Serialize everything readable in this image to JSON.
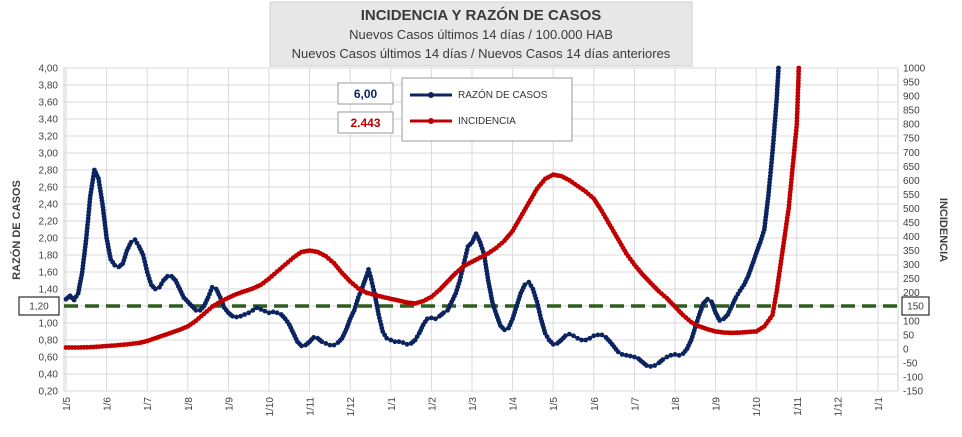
{
  "chart_data": {
    "type": "line",
    "title": "INCIDENCIA Y RAZÓN DE CASOS",
    "subtitle_1": "Nuevos Casos últimos 14 días / 100.000 HAB",
    "subtitle_2": "Nuevos Casos últimos 14 días / Nuevos Casos 14 días anteriores",
    "ylabel_left": "RAZÓN DE CASOS",
    "ylabel_right": "INCIDENCIA",
    "ylim_left": [
      0.2,
      4.0
    ],
    "ylim_right": [
      -150,
      1000
    ],
    "yticks_left": [
      "4,00",
      "3,80",
      "3,60",
      "3,40",
      "3,20",
      "3,00",
      "2,80",
      "2,60",
      "2,40",
      "2,20",
      "2,00",
      "1,80",
      "1,60",
      "1,40",
      "1,20",
      "1,00",
      "0,80",
      "0,60",
      "0,40",
      "0,20"
    ],
    "yticks_right": [
      "1000",
      "950",
      "900",
      "850",
      "800",
      "750",
      "700",
      "650",
      "600",
      "550",
      "500",
      "450",
      "400",
      "350",
      "300",
      "250",
      "200",
      "150",
      "100",
      "50",
      "0",
      "-50",
      "-100",
      "-150"
    ],
    "x_ticks": [
      "1/5",
      "1/6",
      "1/7",
      "1/8",
      "1/9",
      "1/10",
      "1/11",
      "1/12",
      "1/1",
      "1/2",
      "1/3",
      "1/4",
      "1/5",
      "1/6",
      "1/7",
      "1/8",
      "1/9",
      "1/10",
      "1/11",
      "1/12",
      "1/1"
    ],
    "reference_line": {
      "value": 1.2,
      "axis": "left",
      "label": "1,20",
      "label_right": "150",
      "color": "#2e5e1e"
    },
    "current_values": {
      "razon": "6,00",
      "incidencia": "2.443"
    },
    "series": [
      {
        "name": "RAZÓN DE CASOS",
        "axis": "left",
        "color": "#0b2460",
        "points": [
          [
            0,
            1.28
          ],
          [
            0.1,
            1.32
          ],
          [
            0.2,
            1.27
          ],
          [
            0.3,
            1.35
          ],
          [
            0.4,
            1.6
          ],
          [
            0.5,
            2.0
          ],
          [
            0.6,
            2.5
          ],
          [
            0.7,
            2.8
          ],
          [
            0.8,
            2.7
          ],
          [
            0.9,
            2.4
          ],
          [
            1.0,
            2.0
          ],
          [
            1.1,
            1.75
          ],
          [
            1.2,
            1.68
          ],
          [
            1.3,
            1.66
          ],
          [
            1.4,
            1.7
          ],
          [
            1.5,
            1.85
          ],
          [
            1.6,
            1.95
          ],
          [
            1.7,
            1.98
          ],
          [
            1.8,
            1.9
          ],
          [
            1.9,
            1.8
          ],
          [
            2.0,
            1.6
          ],
          [
            2.1,
            1.45
          ],
          [
            2.2,
            1.4
          ],
          [
            2.3,
            1.42
          ],
          [
            2.4,
            1.5
          ],
          [
            2.5,
            1.55
          ],
          [
            2.6,
            1.55
          ],
          [
            2.7,
            1.5
          ],
          [
            2.8,
            1.4
          ],
          [
            2.9,
            1.3
          ],
          [
            3.0,
            1.25
          ],
          [
            3.1,
            1.2
          ],
          [
            3.2,
            1.15
          ],
          [
            3.3,
            1.15
          ],
          [
            3.4,
            1.2
          ],
          [
            3.5,
            1.3
          ],
          [
            3.6,
            1.42
          ],
          [
            3.7,
            1.4
          ],
          [
            3.8,
            1.3
          ],
          [
            3.9,
            1.18
          ],
          [
            4.0,
            1.12
          ],
          [
            4.1,
            1.08
          ],
          [
            4.2,
            1.07
          ],
          [
            4.3,
            1.08
          ],
          [
            4.4,
            1.1
          ],
          [
            4.5,
            1.12
          ],
          [
            4.6,
            1.15
          ],
          [
            4.7,
            1.18
          ],
          [
            4.8,
            1.16
          ],
          [
            4.9,
            1.14
          ],
          [
            5.0,
            1.12
          ],
          [
            5.1,
            1.13
          ],
          [
            5.2,
            1.12
          ],
          [
            5.3,
            1.1
          ],
          [
            5.4,
            1.05
          ],
          [
            5.5,
            0.98
          ],
          [
            5.6,
            0.88
          ],
          [
            5.7,
            0.78
          ],
          [
            5.8,
            0.73
          ],
          [
            5.9,
            0.74
          ],
          [
            6.0,
            0.78
          ],
          [
            6.1,
            0.83
          ],
          [
            6.2,
            0.82
          ],
          [
            6.3,
            0.78
          ],
          [
            6.4,
            0.76
          ],
          [
            6.5,
            0.74
          ],
          [
            6.6,
            0.74
          ],
          [
            6.7,
            0.77
          ],
          [
            6.8,
            0.82
          ],
          [
            6.9,
            0.92
          ],
          [
            7.0,
            1.05
          ],
          [
            7.1,
            1.15
          ],
          [
            7.2,
            1.3
          ],
          [
            7.3,
            1.42
          ],
          [
            7.4,
            1.55
          ],
          [
            7.45,
            1.63
          ],
          [
            7.5,
            1.55
          ],
          [
            7.6,
            1.35
          ],
          [
            7.7,
            1.1
          ],
          [
            7.8,
            0.9
          ],
          [
            7.9,
            0.82
          ],
          [
            8.0,
            0.8
          ],
          [
            8.1,
            0.78
          ],
          [
            8.2,
            0.78
          ],
          [
            8.3,
            0.77
          ],
          [
            8.4,
            0.75
          ],
          [
            8.5,
            0.76
          ],
          [
            8.6,
            0.8
          ],
          [
            8.7,
            0.88
          ],
          [
            8.8,
            0.98
          ],
          [
            8.9,
            1.05
          ],
          [
            9.0,
            1.06
          ],
          [
            9.1,
            1.05
          ],
          [
            9.2,
            1.08
          ],
          [
            9.3,
            1.12
          ],
          [
            9.4,
            1.15
          ],
          [
            9.5,
            1.25
          ],
          [
            9.6,
            1.35
          ],
          [
            9.7,
            1.5
          ],
          [
            9.8,
            1.7
          ],
          [
            9.9,
            1.9
          ],
          [
            10.0,
            1.95
          ],
          [
            10.1,
            2.05
          ],
          [
            10.2,
            1.95
          ],
          [
            10.3,
            1.8
          ],
          [
            10.4,
            1.5
          ],
          [
            10.5,
            1.25
          ],
          [
            10.6,
            1.1
          ],
          [
            10.7,
            0.97
          ],
          [
            10.8,
            0.92
          ],
          [
            10.9,
            0.94
          ],
          [
            11.0,
            1.05
          ],
          [
            11.1,
            1.2
          ],
          [
            11.2,
            1.35
          ],
          [
            11.3,
            1.45
          ],
          [
            11.4,
            1.48
          ],
          [
            11.5,
            1.4
          ],
          [
            11.6,
            1.25
          ],
          [
            11.7,
            1.05
          ],
          [
            11.8,
            0.88
          ],
          [
            11.9,
            0.8
          ],
          [
            12.0,
            0.75
          ],
          [
            12.1,
            0.76
          ],
          [
            12.2,
            0.8
          ],
          [
            12.3,
            0.85
          ],
          [
            12.4,
            0.87
          ],
          [
            12.5,
            0.85
          ],
          [
            12.6,
            0.82
          ],
          [
            12.7,
            0.8
          ],
          [
            12.8,
            0.8
          ],
          [
            12.9,
            0.82
          ],
          [
            13.0,
            0.85
          ],
          [
            13.1,
            0.86
          ],
          [
            13.2,
            0.86
          ],
          [
            13.3,
            0.83
          ],
          [
            13.4,
            0.78
          ],
          [
            13.5,
            0.72
          ],
          [
            13.6,
            0.66
          ],
          [
            13.7,
            0.63
          ],
          [
            13.8,
            0.62
          ],
          [
            13.9,
            0.61
          ],
          [
            14.0,
            0.6
          ],
          [
            14.1,
            0.58
          ],
          [
            14.2,
            0.54
          ],
          [
            14.3,
            0.5
          ],
          [
            14.4,
            0.49
          ],
          [
            14.5,
            0.5
          ],
          [
            14.6,
            0.53
          ],
          [
            14.7,
            0.57
          ],
          [
            14.8,
            0.6
          ],
          [
            14.9,
            0.62
          ],
          [
            15.0,
            0.63
          ],
          [
            15.1,
            0.62
          ],
          [
            15.2,
            0.64
          ],
          [
            15.3,
            0.7
          ],
          [
            15.4,
            0.8
          ],
          [
            15.5,
            0.95
          ],
          [
            15.6,
            1.1
          ],
          [
            15.7,
            1.23
          ],
          [
            15.8,
            1.28
          ],
          [
            15.9,
            1.25
          ],
          [
            16.0,
            1.12
          ],
          [
            16.1,
            1.03
          ],
          [
            16.2,
            1.05
          ],
          [
            16.3,
            1.1
          ],
          [
            16.4,
            1.2
          ],
          [
            16.5,
            1.3
          ],
          [
            16.6,
            1.38
          ],
          [
            16.7,
            1.45
          ],
          [
            16.8,
            1.55
          ],
          [
            16.9,
            1.68
          ],
          [
            17.0,
            1.82
          ],
          [
            17.1,
            1.95
          ],
          [
            17.2,
            2.1
          ],
          [
            17.3,
            2.5
          ],
          [
            17.4,
            3.0
          ],
          [
            17.5,
            3.6
          ],
          [
            17.55,
            4.0
          ]
        ]
      },
      {
        "name": "INCIDENCIA",
        "axis": "right",
        "color": "#c00000",
        "points": [
          [
            0,
            5
          ],
          [
            0.3,
            5
          ],
          [
            0.6,
            6
          ],
          [
            0.9,
            9
          ],
          [
            1.2,
            12
          ],
          [
            1.5,
            16
          ],
          [
            1.8,
            21
          ],
          [
            2.0,
            28
          ],
          [
            2.2,
            38
          ],
          [
            2.4,
            48
          ],
          [
            2.6,
            58
          ],
          [
            2.8,
            68
          ],
          [
            3.0,
            80
          ],
          [
            3.2,
            100
          ],
          [
            3.4,
            125
          ],
          [
            3.6,
            150
          ],
          [
            3.8,
            168
          ],
          [
            4.0,
            182
          ],
          [
            4.2,
            195
          ],
          [
            4.4,
            205
          ],
          [
            4.6,
            215
          ],
          [
            4.8,
            228
          ],
          [
            5.0,
            250
          ],
          [
            5.2,
            275
          ],
          [
            5.4,
            300
          ],
          [
            5.6,
            325
          ],
          [
            5.8,
            345
          ],
          [
            6.0,
            350
          ],
          [
            6.2,
            345
          ],
          [
            6.4,
            330
          ],
          [
            6.6,
            305
          ],
          [
            6.8,
            270
          ],
          [
            7.0,
            240
          ],
          [
            7.2,
            215
          ],
          [
            7.4,
            200
          ],
          [
            7.6,
            192
          ],
          [
            7.8,
            185
          ],
          [
            8.0,
            178
          ],
          [
            8.2,
            172
          ],
          [
            8.4,
            165
          ],
          [
            8.6,
            162
          ],
          [
            8.8,
            170
          ],
          [
            9.0,
            185
          ],
          [
            9.2,
            210
          ],
          [
            9.4,
            240
          ],
          [
            9.6,
            270
          ],
          [
            9.8,
            295
          ],
          [
            10.0,
            310
          ],
          [
            10.2,
            325
          ],
          [
            10.4,
            340
          ],
          [
            10.6,
            360
          ],
          [
            10.8,
            385
          ],
          [
            11.0,
            420
          ],
          [
            11.2,
            470
          ],
          [
            11.4,
            520
          ],
          [
            11.6,
            570
          ],
          [
            11.8,
            605
          ],
          [
            12.0,
            620
          ],
          [
            12.2,
            615
          ],
          [
            12.4,
            600
          ],
          [
            12.6,
            580
          ],
          [
            12.8,
            560
          ],
          [
            13.0,
            535
          ],
          [
            13.2,
            490
          ],
          [
            13.4,
            440
          ],
          [
            13.6,
            390
          ],
          [
            13.8,
            340
          ],
          [
            14.0,
            300
          ],
          [
            14.2,
            265
          ],
          [
            14.4,
            235
          ],
          [
            14.6,
            205
          ],
          [
            14.8,
            180
          ],
          [
            15.0,
            150
          ],
          [
            15.2,
            120
          ],
          [
            15.4,
            95
          ],
          [
            15.6,
            80
          ],
          [
            15.8,
            70
          ],
          [
            16.0,
            62
          ],
          [
            16.2,
            58
          ],
          [
            16.4,
            57
          ],
          [
            16.6,
            58
          ],
          [
            16.8,
            60
          ],
          [
            17.0,
            62
          ],
          [
            17.2,
            80
          ],
          [
            17.4,
            120
          ],
          [
            17.5,
            200
          ],
          [
            17.6,
            300
          ],
          [
            17.7,
            400
          ],
          [
            17.8,
            500
          ],
          [
            17.9,
            650
          ],
          [
            18.0,
            800
          ],
          [
            18.05,
            1000
          ]
        ]
      }
    ]
  },
  "legend": {
    "razon_label": "RAZÓN DE CASOS",
    "incidencia_label": "INCIDENCIA"
  },
  "colors": {
    "razon": "#0b2460",
    "incidencia": "#c00000",
    "reference": "#2e5e1e",
    "grid": "#d9d9d9"
  }
}
